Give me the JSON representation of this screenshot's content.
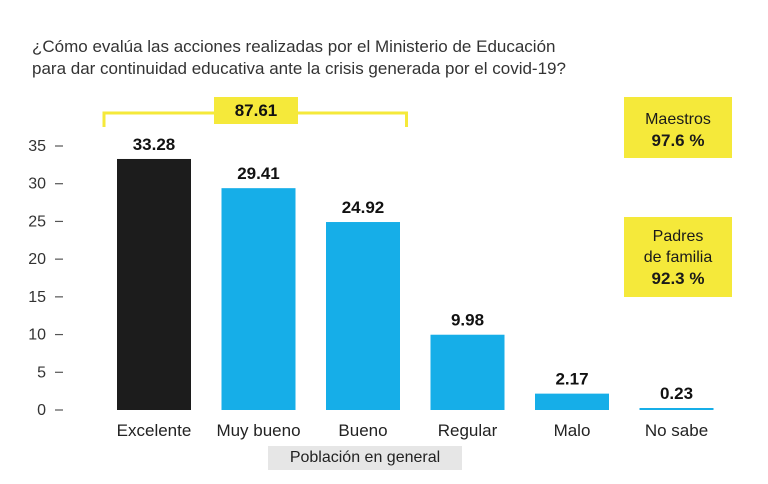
{
  "title_lines": [
    "¿Cómo evalúa las acciones realizadas por el Ministerio de Educación",
    "para dar continuidad educativa ante la crisis generada por el covid-19?"
  ],
  "bracket_total": "87.61",
  "side_boxes": {
    "teachers": {
      "label": "Maestros",
      "value": "97.6 %"
    },
    "parents": {
      "label_lines": [
        "Padres",
        "de familia"
      ],
      "value": "92.3 %"
    }
  },
  "chart_data": {
    "type": "bar",
    "categories": [
      "Excelente",
      "Muy bueno",
      "Bueno",
      "Regular",
      "Malo",
      "No sabe"
    ],
    "values": [
      33.28,
      29.41,
      24.92,
      9.98,
      2.17,
      0.23
    ],
    "value_labels": [
      "33.28",
      "29.41",
      "24.92",
      "9.98",
      "2.17",
      "0.23"
    ],
    "xlabel": "Población en general",
    "ylabel": "",
    "ylim": [
      0,
      35
    ],
    "yticks": [
      0,
      5,
      10,
      15,
      20,
      25,
      30,
      35
    ],
    "grid": false,
    "colors": {
      "highlight": "#1c1c1c",
      "bar": "#16aee8",
      "accent": "#f5e93a"
    }
  }
}
